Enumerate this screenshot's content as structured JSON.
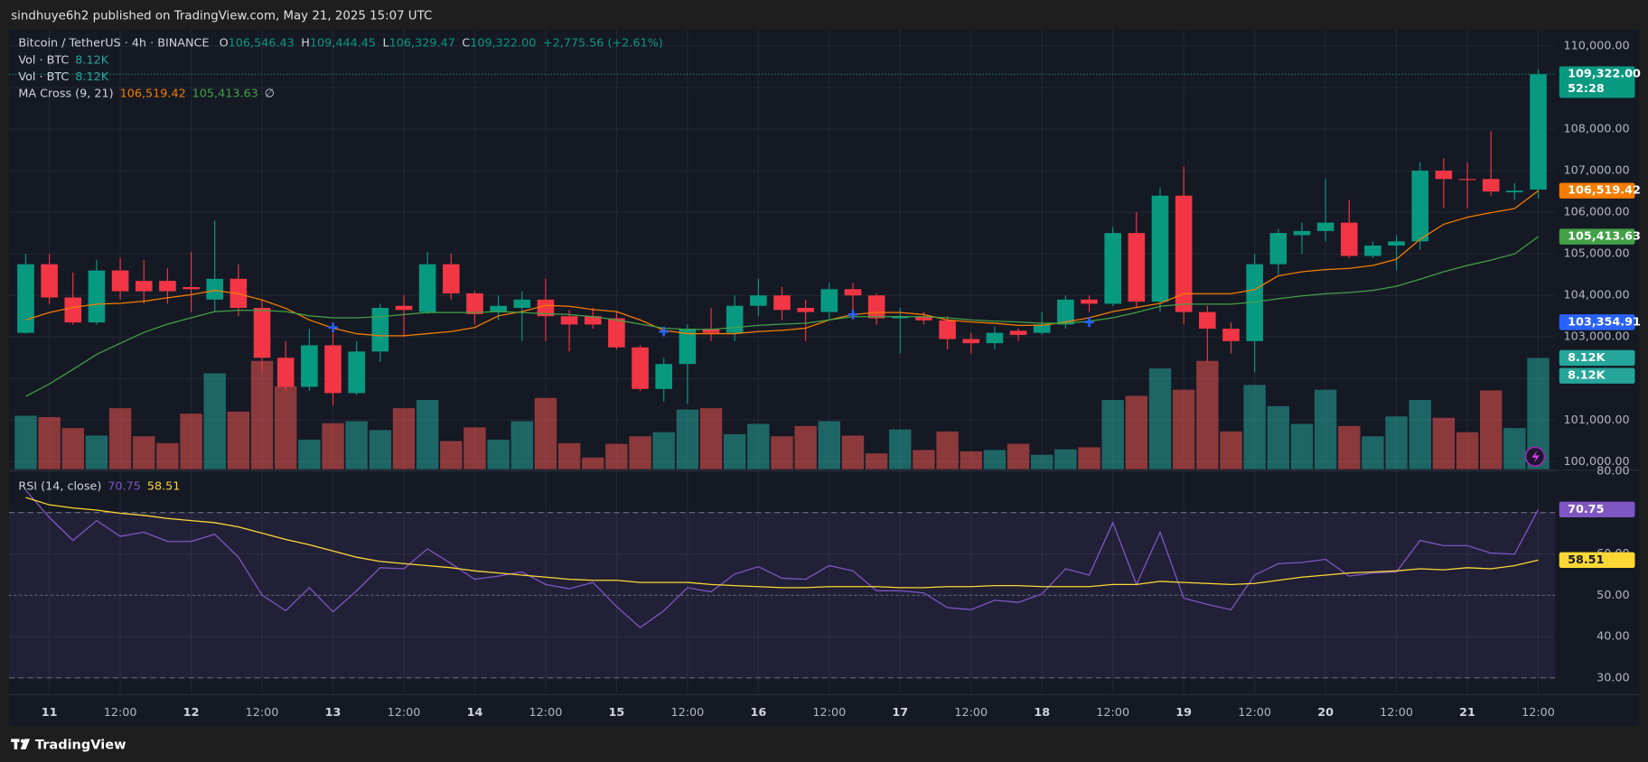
{
  "header": {
    "published": "sindhuye6h2 published on TradingView.com, May 21, 2025 15:07 UTC",
    "brand": "TradingView"
  },
  "chart_data": [
    {
      "type": "candlestick",
      "title": "Bitcoin / TetherUS · 4h · BINANCE",
      "categories": [
        null,
        "11",
        null,
        null,
        "12:00",
        null,
        null,
        "12",
        null,
        null,
        "12:00",
        null,
        null,
        "13",
        null,
        null,
        "12:00",
        null,
        null,
        "14",
        null,
        null,
        "12:00",
        null,
        null,
        "15",
        null,
        null,
        "12:00",
        null,
        null,
        "16",
        null,
        null,
        "12:00",
        null,
        null,
        "17",
        null,
        null,
        "12:00",
        null,
        null,
        "18",
        null,
        null,
        "12:00",
        null,
        null,
        "19",
        null,
        null,
        "12:00",
        null,
        null,
        "20",
        null,
        null,
        "12:00",
        null,
        null,
        "21",
        null,
        null,
        "12:00"
      ],
      "open": [
        103100,
        104750,
        103950,
        103350,
        104600,
        104350,
        104350,
        104200,
        103900,
        104400,
        103700,
        102500,
        101800,
        102800,
        101650,
        102650,
        103750,
        103600,
        104750,
        104050,
        103600,
        103700,
        103900,
        103500,
        103500,
        103450,
        102750,
        101750,
        102350,
        103200,
        103100,
        103750,
        104000,
        103700,
        103600,
        104150,
        104000,
        103450,
        103500,
        103400,
        102950,
        102850,
        103150,
        103100,
        103300,
        103900,
        103800,
        105500,
        103850,
        106400,
        103600,
        103200,
        102900,
        104750,
        105450,
        105550,
        105750,
        104950,
        105200,
        105300,
        107000,
        106800,
        106800,
        106480,
        106546.43
      ],
      "high": [
        105000,
        105000,
        104550,
        104850,
        104900,
        104850,
        104650,
        105050,
        105800,
        104750,
        103900,
        102900,
        103200,
        103100,
        102900,
        103800,
        104000,
        105050,
        105000,
        104100,
        104000,
        104100,
        104400,
        103650,
        103700,
        103600,
        102800,
        102500,
        103300,
        103700,
        104000,
        104400,
        104200,
        103900,
        104300,
        104300,
        104050,
        103700,
        103600,
        103500,
        103100,
        103250,
        103200,
        103600,
        104000,
        104000,
        105650,
        106000,
        106600,
        107100,
        103750,
        103350,
        105000,
        105600,
        105750,
        106800,
        106300,
        105300,
        105450,
        107200,
        107300,
        107200,
        107950,
        106700,
        109444.45
      ],
      "low": [
        103080,
        103800,
        103300,
        103300,
        103900,
        103800,
        103800,
        103600,
        103600,
        103500,
        102200,
        101700,
        101700,
        101350,
        101600,
        102400,
        103000,
        103550,
        103900,
        103300,
        103400,
        102900,
        102900,
        102650,
        103200,
        102700,
        101700,
        101450,
        101400,
        102900,
        102900,
        103500,
        103400,
        102900,
        103400,
        103600,
        103300,
        102600,
        103300,
        102700,
        102600,
        102700,
        102900,
        103050,
        103200,
        103600,
        103750,
        103700,
        103600,
        103300,
        102400,
        102600,
        102150,
        104500,
        105000,
        105300,
        104900,
        104900,
        104600,
        105100,
        106100,
        106100,
        106400,
        106300,
        106329.47
      ],
      "close": [
        104750,
        103950,
        103350,
        104600,
        104100,
        104100,
        104100,
        104150,
        104400,
        103700,
        102500,
        101800,
        102800,
        101650,
        102650,
        103700,
        103650,
        104750,
        104050,
        103550,
        103750,
        103900,
        103500,
        103300,
        103300,
        102750,
        101750,
        102350,
        103200,
        103100,
        103750,
        104000,
        103650,
        103600,
        104150,
        104000,
        103450,
        103500,
        103400,
        102950,
        102850,
        103100,
        103050,
        103300,
        103900,
        103800,
        105500,
        103850,
        106400,
        103600,
        103200,
        102900,
        104750,
        105500,
        105550,
        105750,
        104950,
        105200,
        105300,
        107000,
        106800,
        106780,
        106500,
        106520,
        109322
      ],
      "up_color": "#089981",
      "down_color": "#f23645",
      "ohlc_names": [
        "O",
        "H",
        "L",
        "C"
      ],
      "ohlc_value_labels": [
        "106,546.43",
        "109,444.45",
        "106,329.47",
        "109,322.00"
      ],
      "change_label": "+2,775.56 (+2.61%)",
      "countdown": "52:28",
      "ylim": [
        99820,
        110400
      ],
      "yticks": [
        {
          "value": 100000,
          "label": "100,000.00"
        },
        {
          "value": 101000,
          "label": "101,000.00"
        },
        {
          "value": 102000,
          "label": "102,000.00"
        },
        {
          "value": 103000,
          "label": "103,000.00"
        },
        {
          "value": 104000,
          "label": "104,000.00"
        },
        {
          "value": 105000,
          "label": "105,000.00"
        },
        {
          "value": 106000,
          "label": "106,000.00"
        },
        {
          "value": 107000,
          "label": "107,000.00"
        },
        {
          "value": 108000,
          "label": "108,000.00"
        },
        {
          "value": 109000,
          "label": "109,000.00"
        },
        {
          "value": 110000,
          "label": "110,000.00"
        }
      ],
      "grid": true,
      "volume": {
        "name": "Vol · BTC",
        "value_label": "8.12K",
        "up_color": "rgba(38,166,154,0.55)",
        "down_color": "rgba(239,83,80,0.55)",
        "tag_color": "#26a69a",
        "ylim": [
          0,
          32100
        ],
        "values": [
          3900,
          3800,
          3000,
          2450,
          4450,
          2400,
          1900,
          4050,
          7000,
          4200,
          7900,
          6050,
          2150,
          3350,
          3500,
          2850,
          4450,
          5050,
          2050,
          3050,
          2150,
          3500,
          5200,
          1900,
          850,
          1850,
          2400,
          2700,
          4350,
          4450,
          2550,
          3300,
          2400,
          3150,
          3500,
          2450,
          1150,
          2900,
          1400,
          2750,
          1300,
          1400,
          1850,
          1050,
          1450,
          1600,
          5050,
          5350,
          7350,
          5800,
          7900,
          2750,
          6150,
          4600,
          3300,
          5800,
          3150,
          2400,
          3850,
          5050,
          3750,
          2700,
          5750,
          3000,
          8120
        ]
      },
      "ma": {
        "name": "MA Cross (9, 21)",
        "status": "∅",
        "series": [
          {
            "color": "#f57c00",
            "value_label": "106,519.42",
            "values": [
              103410,
              103590,
              103710,
              103790,
              103810,
              103860,
              103940,
              104020,
              104120,
              104040,
              103890,
              103690,
              103410,
              103210,
              103080,
              103030,
              103030,
              103080,
              103130,
              103230,
              103510,
              103610,
              103760,
              103740,
              103660,
              103610,
              103410,
              103160,
              103080,
              103080,
              103080,
              103130,
              103160,
              103210,
              103410,
              103540,
              103590,
              103590,
              103540,
              103410,
              103360,
              103330,
              103280,
              103280,
              103360,
              103460,
              103610,
              103710,
              103810,
              104040,
              104040,
              104040,
              104140,
              104470,
              104570,
              104620,
              104650,
              104720,
              104870,
              105350,
              105710,
              105880,
              105990,
              106090,
              106519.42
            ]
          },
          {
            "color": "#43a047",
            "value_label": "105,413.63",
            "values": [
              101570,
              101870,
              102220,
              102580,
              102850,
              103110,
              103310,
              103460,
              103610,
              103640,
              103640,
              103610,
              103510,
              103460,
              103460,
              103490,
              103540,
              103590,
              103590,
              103590,
              103610,
              103590,
              103560,
              103540,
              103490,
              103410,
              103310,
              103210,
              103180,
              103180,
              103230,
              103280,
              103310,
              103330,
              103410,
              103490,
              103490,
              103490,
              103490,
              103460,
              103410,
              103380,
              103360,
              103330,
              103330,
              103380,
              103460,
              103590,
              103740,
              103790,
              103790,
              103790,
              103840,
              103920,
              103990,
              104040,
              104070,
              104120,
              104220,
              104390,
              104570,
              104720,
              104850,
              105000,
              105413.63
            ]
          }
        ],
        "cross_color": "#2962ff",
        "cross_label": "103,354.91",
        "cross_values": [
          null,
          null,
          null,
          null,
          null,
          null,
          null,
          null,
          null,
          null,
          null,
          null,
          null,
          103230,
          null,
          null,
          null,
          null,
          null,
          null,
          null,
          null,
          null,
          null,
          null,
          null,
          null,
          103130,
          null,
          null,
          null,
          null,
          null,
          null,
          null,
          103540,
          null,
          null,
          null,
          null,
          null,
          null,
          null,
          null,
          null,
          103354.91,
          null,
          null,
          null,
          null,
          null,
          null,
          null,
          null,
          null,
          null,
          null,
          null,
          null,
          null,
          null,
          null,
          null,
          null,
          null
        ]
      }
    },
    {
      "type": "line",
      "title": "RSI (14, close)",
      "series": [
        {
          "color": "#7e57c2",
          "values": [
            75.43,
            68.83,
            63.25,
            68.07,
            64.26,
            65.28,
            63.0,
            63.0,
            64.77,
            59.19,
            50.05,
            46.24,
            51.83,
            45.99,
            51.07,
            56.65,
            56.4,
            61.22,
            57.66,
            53.86,
            54.62,
            55.63,
            52.59,
            51.57,
            53.1,
            47.26,
            42.18,
            46.24,
            51.83,
            50.81,
            55.13,
            56.9,
            54.11,
            53.86,
            57.16,
            55.89,
            51.07,
            51.07,
            50.56,
            47.0,
            46.5,
            48.78,
            48.27,
            50.3,
            56.4,
            54.87,
            67.56,
            52.59,
            65.28,
            49.29,
            47.77,
            46.5,
            54.87,
            57.66,
            57.92,
            58.68,
            54.62,
            55.38,
            55.63,
            63.25,
            61.98,
            61.98,
            60.2,
            59.95,
            70.75
          ]
        },
        {
          "color": "#fdd835",
          "values": [
            73.65,
            71.88,
            71.12,
            70.61,
            69.85,
            69.34,
            68.58,
            68.07,
            67.56,
            66.55,
            65.03,
            63.5,
            62.23,
            60.71,
            59.19,
            58.17,
            57.66,
            57.16,
            56.65,
            55.89,
            55.38,
            54.87,
            54.37,
            53.86,
            53.6,
            53.6,
            53.1,
            53.1,
            53.1,
            52.59,
            52.34,
            52.08,
            51.83,
            51.83,
            52.08,
            52.08,
            52.08,
            51.83,
            51.83,
            52.08,
            52.08,
            52.34,
            52.34,
            52.08,
            52.08,
            52.08,
            52.59,
            52.59,
            53.35,
            53.1,
            52.84,
            52.59,
            52.84,
            53.6,
            54.37,
            54.87,
            55.38,
            55.63,
            55.89,
            56.4,
            56.14,
            56.65,
            56.4,
            57.16,
            58.51
          ]
        }
      ],
      "ylim": [
        25.9,
        80
      ],
      "yticks": [
        {
          "value": 30,
          "label": "30.00"
        },
        {
          "value": 40,
          "label": "40.00"
        },
        {
          "value": 50,
          "label": "50.00"
        },
        {
          "value": 60,
          "label": "60.00"
        },
        {
          "value": 70,
          "label": "70.00"
        },
        {
          "value": 80,
          "label": "80.00"
        }
      ],
      "levels": [
        70,
        50,
        30
      ],
      "band_color": "rgba(126,87,194,0.12)",
      "grid": true
    }
  ]
}
